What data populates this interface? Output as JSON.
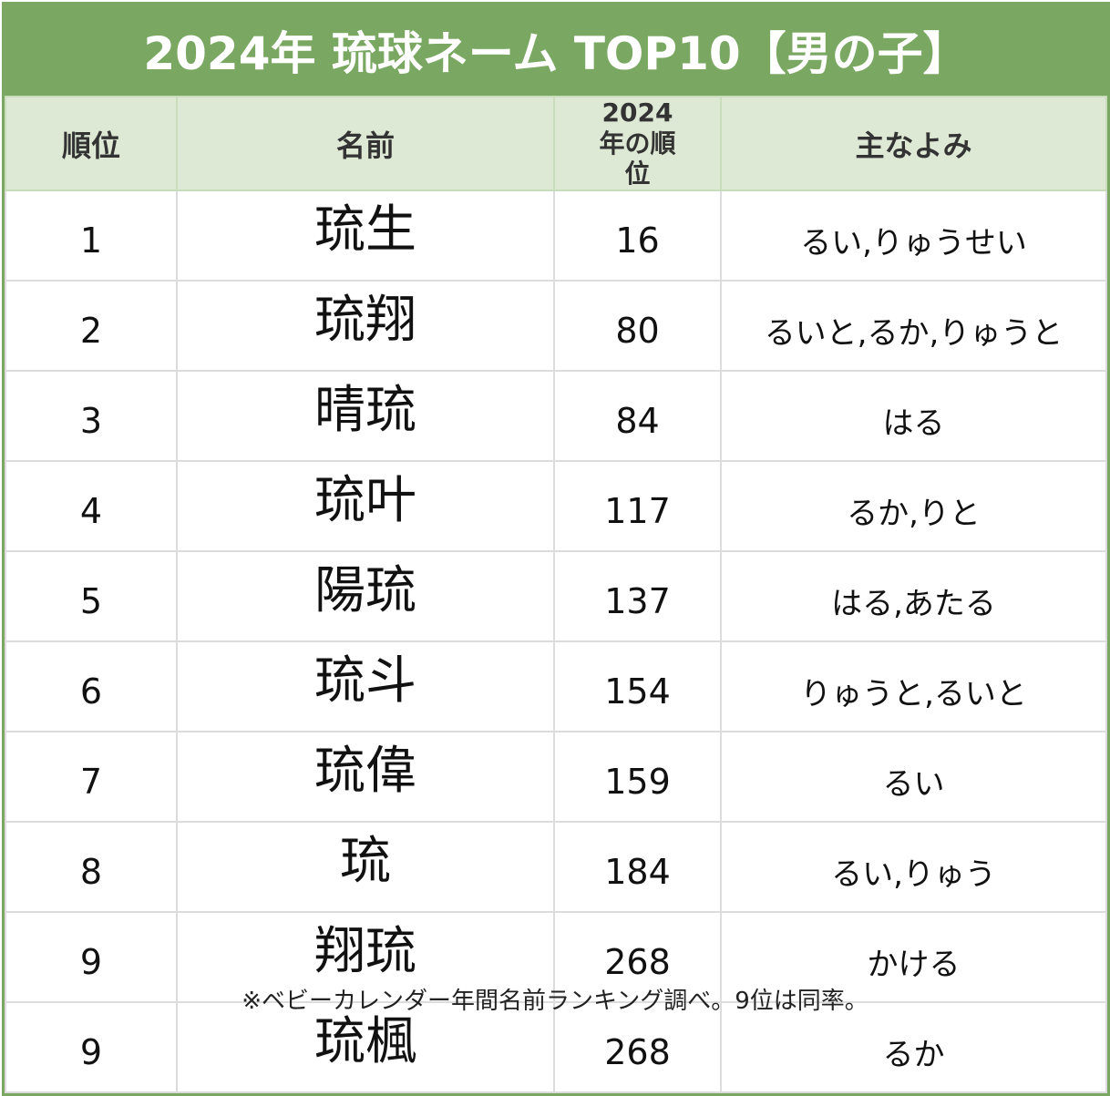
{
  "title": "2024年 琉球ネーム TOP10【男の子】",
  "table": {
    "headers": [
      "順位",
      "名前",
      "2024年の順位",
      "主なよみ"
    ],
    "rows": [
      [
        1,
        "琉生",
        16,
        "るい,りゅうせい"
      ],
      [
        2,
        "琉翔",
        80,
        "るいと,るか,りゅうと"
      ],
      [
        3,
        "晴琉",
        84,
        "はる"
      ],
      [
        4,
        "琉叶",
        117,
        "るか,りと"
      ],
      [
        5,
        "陽琉",
        137,
        "はる,あたる"
      ],
      [
        6,
        "琉斗",
        154,
        "りゅうと,るいと"
      ],
      [
        7,
        "琉偉",
        159,
        "るい"
      ],
      [
        8,
        "琉",
        184,
        "るい,りゅう"
      ],
      [
        9,
        "翔琉",
        268,
        "かける"
      ],
      [
        9,
        "琉楓",
        268,
        "るか"
      ]
    ]
  },
  "footnote": "※ベビーカレンダー年間名前ランキング調べ。9位は同率。"
}
